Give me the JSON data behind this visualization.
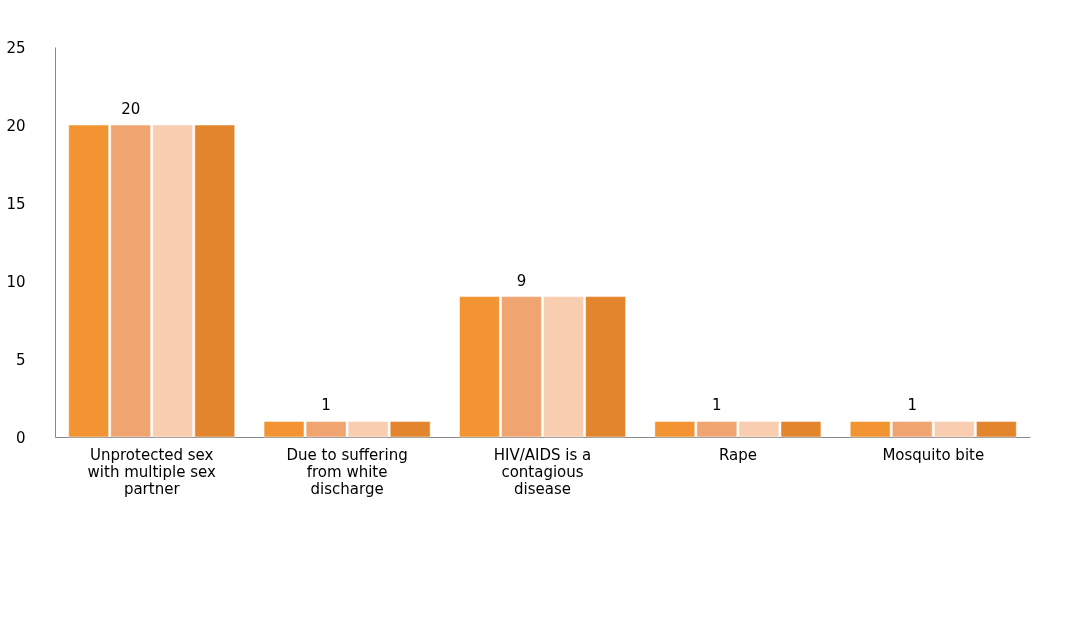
{
  "chart_data": {
    "type": "bar",
    "categories": [
      "Unprotected sex with multiple sex partner",
      "Due to suffering from white discharge",
      "HIV/AIDS is a contagious disease",
      "Rape",
      "Mosquito bite"
    ],
    "series": [
      {
        "color": "#f39433",
        "values": [
          20,
          1,
          9,
          1,
          1
        ]
      },
      {
        "color": "#f0a470",
        "values": [
          20,
          1,
          9,
          1,
          1
        ],
        "value_labels": [
          "20",
          "1",
          "9",
          "1",
          "1"
        ]
      },
      {
        "color": "#f8cdb0",
        "values": [
          20,
          1,
          9,
          1,
          1
        ]
      },
      {
        "color": "#e2852c",
        "values": [
          20,
          1,
          9,
          1,
          1
        ]
      }
    ],
    "ylim": [
      0,
      25
    ],
    "yticks": [
      0,
      5,
      10,
      15,
      20,
      25
    ],
    "grid": false
  }
}
